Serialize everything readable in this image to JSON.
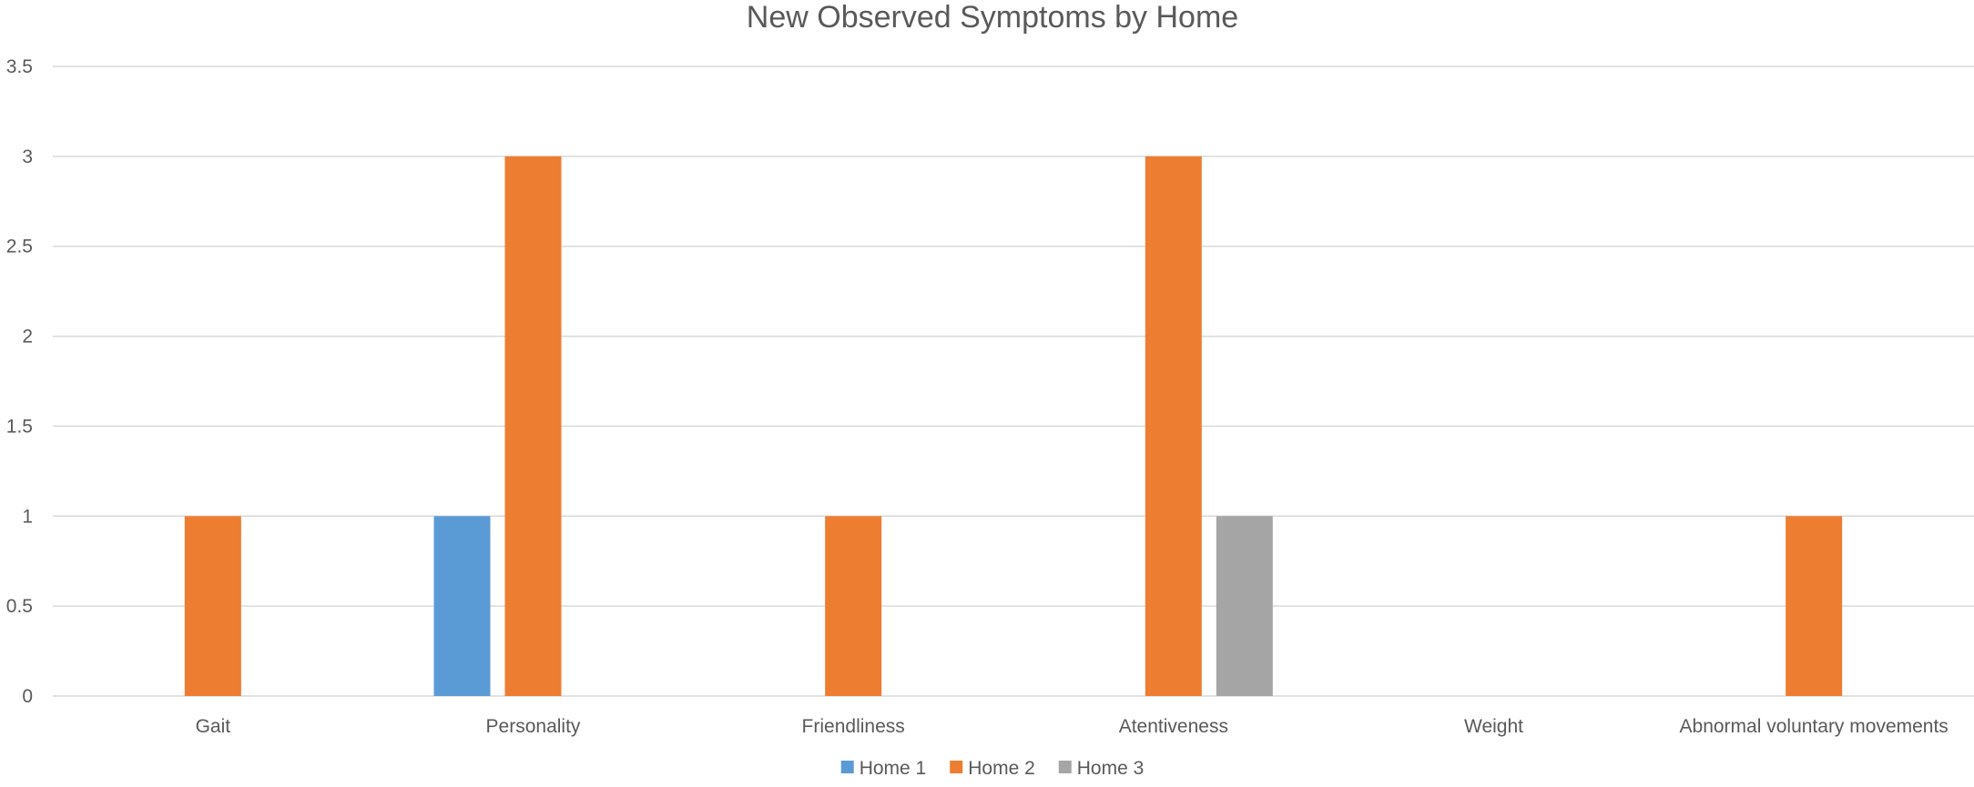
{
  "chart_data": {
    "type": "bar",
    "title": "New  Observed Symptoms by Home",
    "xlabel": "",
    "ylabel": "",
    "ylim": [
      0,
      3.5
    ],
    "yticks": [
      "0",
      "0.5",
      "1",
      "1.5",
      "2",
      "2.5",
      "3",
      "3.5"
    ],
    "grid": true,
    "legend_position": "bottom",
    "categories": [
      "Gait",
      "Personality",
      "Friendliness",
      "Atentiveness",
      "Weight",
      "Abnormal voluntary movements"
    ],
    "series": [
      {
        "name": "Home 1",
        "color": "#5b9bd5",
        "values": [
          0,
          1,
          0,
          0,
          0,
          0
        ]
      },
      {
        "name": "Home 2",
        "color": "#ed7d31",
        "values": [
          1,
          3,
          1,
          3,
          0,
          1
        ]
      },
      {
        "name": "Home 3",
        "color": "#a5a5a5",
        "values": [
          0,
          0,
          0,
          1,
          0,
          0
        ]
      }
    ]
  }
}
